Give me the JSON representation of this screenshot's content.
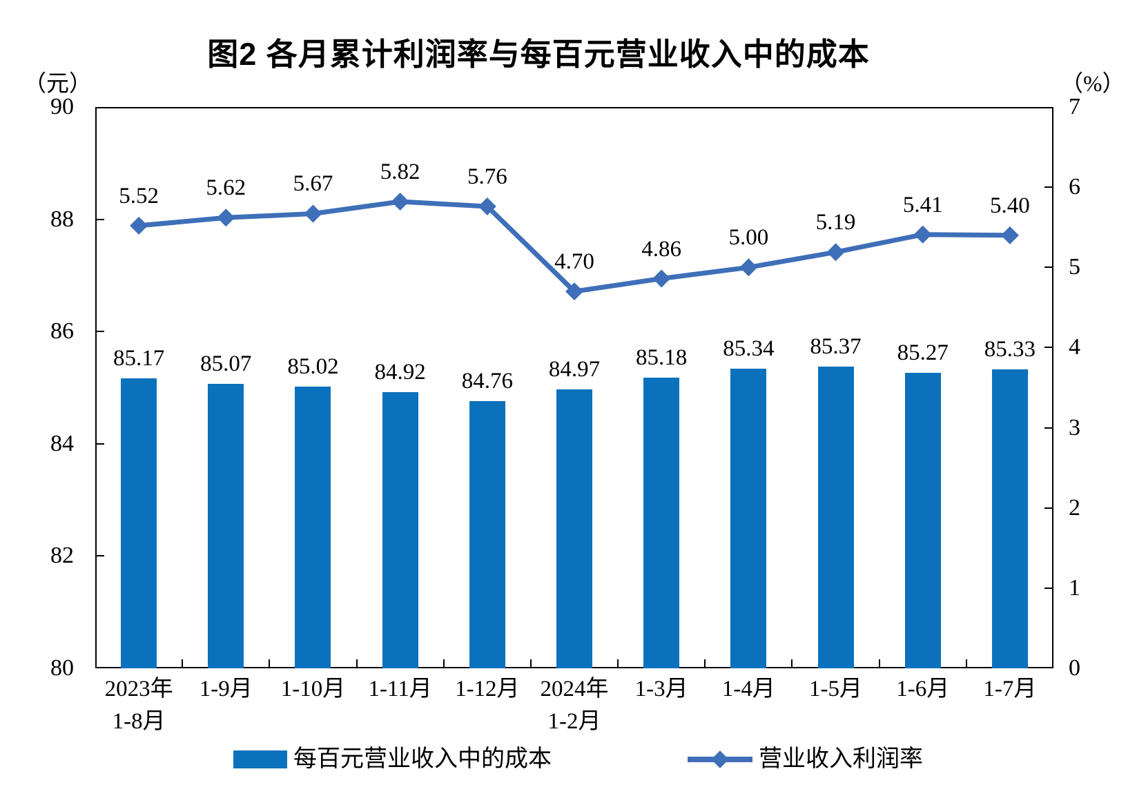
{
  "title": "图2 各月累计利润率与每百元营业收入中的成本",
  "chart_data": {
    "type": "combo",
    "categories": [
      "2023年\n1-8月",
      "1-9月",
      "1-10月",
      "1-11月",
      "1-12月",
      "2024年\n1-2月",
      "1-3月",
      "1-4月",
      "1-5月",
      "1-6月",
      "1-7月"
    ],
    "series": [
      {
        "name": "每百元营业收入中的成本",
        "type": "bar",
        "axis": "left",
        "color": "#0C71BD",
        "values": [
          85.17,
          85.07,
          85.02,
          84.92,
          84.76,
          84.97,
          85.18,
          85.34,
          85.37,
          85.27,
          85.33
        ]
      },
      {
        "name": "营业收入利润率",
        "type": "line",
        "axis": "right",
        "color": "#3E6FB8",
        "values": [
          5.52,
          5.62,
          5.67,
          5.82,
          5.76,
          4.7,
          4.86,
          5.0,
          5.19,
          5.41,
          5.4
        ]
      }
    ],
    "left_axis": {
      "unit": "（元）",
      "min": 80,
      "max": 90,
      "ticks": [
        90,
        88,
        86,
        84,
        82,
        80
      ]
    },
    "right_axis": {
      "unit": "（%）",
      "min": 0,
      "max": 7,
      "ticks": [
        7,
        6,
        5,
        4,
        3,
        2,
        1,
        0
      ]
    },
    "value_label_decimals": 2,
    "grid": false,
    "legend_position": "bottom"
  }
}
